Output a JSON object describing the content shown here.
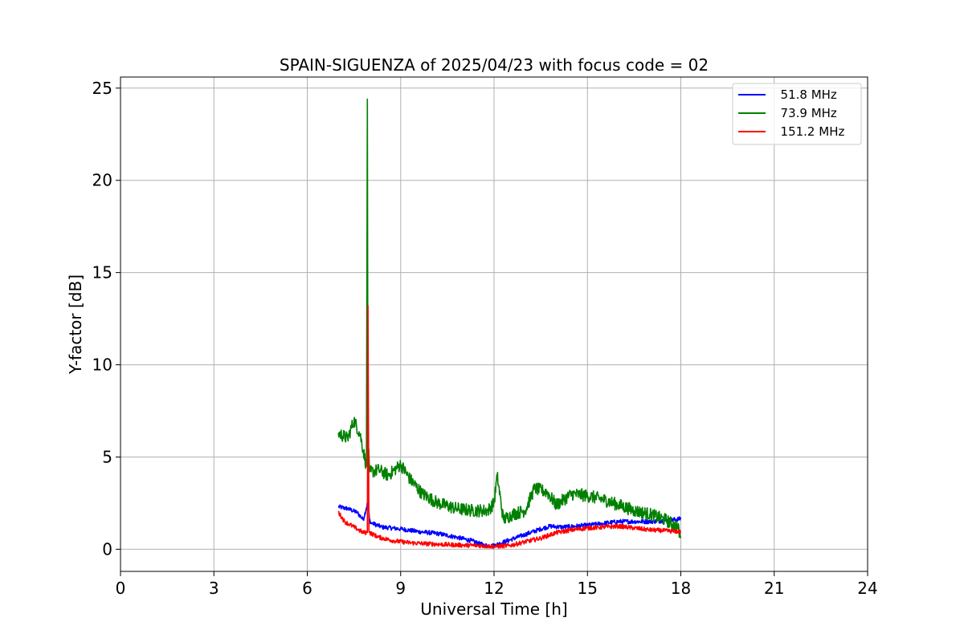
{
  "chart_data": {
    "type": "line",
    "title": "SPAIN-SIGUENZA of 2025/04/23 with focus code = 02",
    "xlabel": "Universal Time [h]",
    "ylabel": "Y-factor [dB]",
    "xlim": [
      0,
      24
    ],
    "ylim": [
      -1.2,
      25.6
    ],
    "xticks": [
      0,
      3,
      6,
      9,
      12,
      15,
      18,
      21,
      24
    ],
    "yticks": [
      0,
      5,
      10,
      15,
      20,
      25
    ],
    "grid": true,
    "legend_position": "top-right",
    "series": [
      {
        "name": "  51.8 MHz",
        "color": "#0000ff",
        "noise": 0.12,
        "x": [
          7.0,
          7.3,
          7.6,
          7.8,
          7.95,
          8.0,
          8.05,
          8.1,
          8.4,
          9.0,
          9.6,
          10.2,
          10.8,
          11.3,
          11.7,
          12.0,
          12.5,
          13.0,
          13.5,
          13.8,
          14.2,
          14.6,
          15.0,
          15.5,
          16.0,
          16.5,
          17.0,
          17.5,
          18.0
        ],
        "y": [
          2.3,
          2.2,
          2.0,
          1.6,
          2.6,
          1.6,
          1.4,
          1.4,
          1.2,
          1.1,
          0.95,
          0.85,
          0.65,
          0.45,
          0.2,
          0.2,
          0.5,
          0.8,
          1.1,
          1.25,
          1.2,
          1.25,
          1.3,
          1.4,
          1.5,
          1.5,
          1.5,
          1.55,
          1.65
        ]
      },
      {
        "name": "  73.9 MHz",
        "color": "#008000",
        "noise": 0.35,
        "x": [
          7.0,
          7.3,
          7.5,
          7.7,
          7.9,
          7.93,
          7.95,
          8.0,
          8.05,
          8.3,
          8.6,
          9.0,
          9.3,
          9.7,
          10.2,
          10.8,
          11.3,
          11.8,
          12.0,
          12.1,
          12.3,
          12.6,
          13.0,
          13.3,
          13.7,
          14.0,
          14.5,
          15.0,
          15.5,
          16.0,
          16.5,
          17.0,
          17.5,
          17.9,
          18.0
        ],
        "y": [
          6.3,
          6.0,
          7.0,
          6.2,
          4.5,
          24.4,
          6.0,
          4.2,
          4.2,
          4.3,
          4.0,
          4.6,
          3.8,
          3.0,
          2.5,
          2.2,
          2.1,
          2.1,
          2.5,
          4.0,
          1.6,
          1.9,
          2.1,
          3.3,
          3.1,
          2.4,
          3.0,
          2.9,
          2.7,
          2.4,
          2.1,
          1.9,
          1.6,
          1.2,
          0.6
        ]
      },
      {
        "name": "  151.2 MHz",
        "color": "#ff0000",
        "noise": 0.12,
        "x": [
          7.0,
          7.2,
          7.5,
          7.8,
          7.93,
          7.95,
          7.98,
          8.0,
          8.3,
          8.8,
          9.3,
          9.8,
          10.5,
          11.0,
          11.5,
          12.0,
          12.5,
          13.0,
          13.5,
          14.0,
          14.5,
          15.0,
          15.5,
          16.0,
          16.5,
          17.0,
          17.5,
          18.0
        ],
        "y": [
          2.0,
          1.5,
          1.2,
          0.9,
          0.9,
          13.2,
          1.0,
          0.9,
          0.65,
          0.45,
          0.35,
          0.3,
          0.25,
          0.22,
          0.2,
          0.15,
          0.2,
          0.4,
          0.6,
          0.9,
          1.05,
          1.15,
          1.2,
          1.25,
          1.15,
          1.05,
          1.0,
          0.95
        ]
      }
    ]
  }
}
